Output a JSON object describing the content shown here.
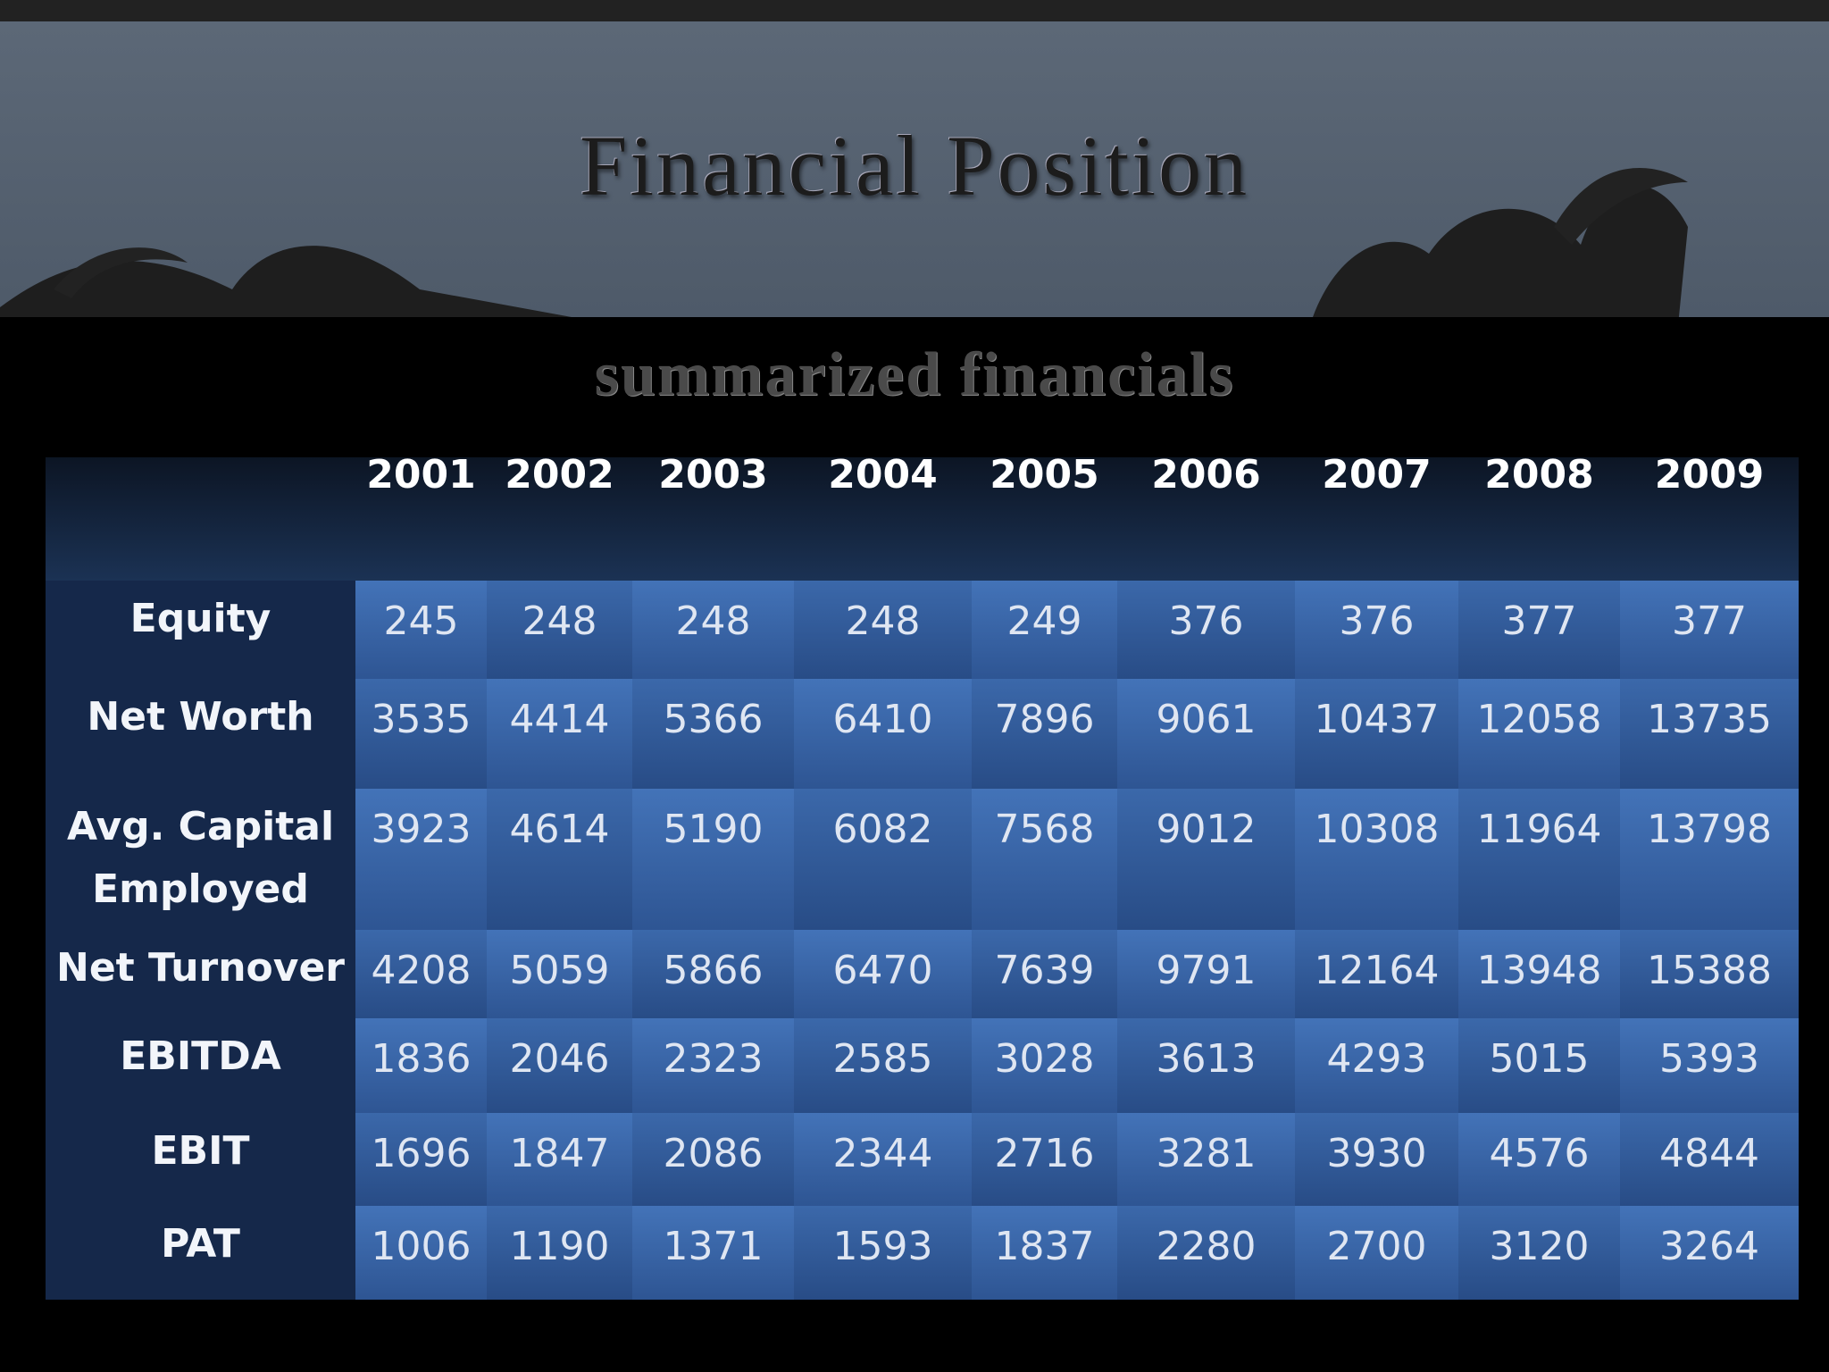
{
  "title": "Financial Position",
  "subtitle": "summarized financials",
  "table": {
    "columns": [
      2001,
      2002,
      2003,
      2004,
      2005,
      2006,
      2007,
      2008,
      2009
    ],
    "rows": [
      {
        "label": "Equity",
        "values": [
          245,
          248,
          248,
          248,
          249,
          376,
          376,
          377,
          377
        ]
      },
      {
        "label": "Net Worth",
        "values": [
          3535,
          4414,
          5366,
          6410,
          7896,
          9061,
          10437,
          12058,
          13735
        ]
      },
      {
        "label": "Avg. Capital Employed",
        "values": [
          3923,
          4614,
          5190,
          6082,
          7568,
          9012,
          10308,
          11964,
          13798
        ]
      },
      {
        "label": "Net Turnover",
        "values": [
          4208,
          5059,
          5866,
          6470,
          7639,
          9791,
          12164,
          13948,
          15388
        ]
      },
      {
        "label": "EBITDA",
        "values": [
          1836,
          2046,
          2323,
          2585,
          3028,
          3613,
          4293,
          5015,
          5393
        ]
      },
      {
        "label": "EBIT",
        "values": [
          1696,
          1847,
          2086,
          2344,
          2716,
          3281,
          3930,
          4576,
          4844
        ]
      },
      {
        "label": "PAT",
        "values": [
          1006,
          1190,
          1371,
          1593,
          1837,
          2280,
          2700,
          3120,
          3264
        ]
      }
    ]
  }
}
